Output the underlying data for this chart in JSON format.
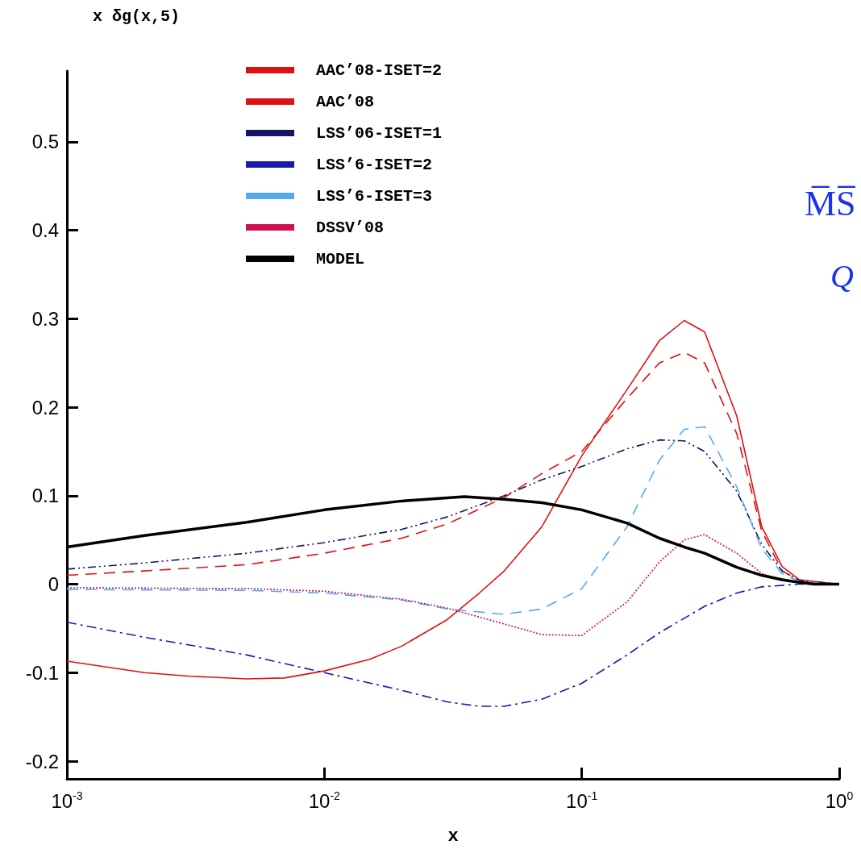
{
  "chart_data": {
    "type": "line",
    "ylabel": "x δg(x,5)",
    "xlabel": "x",
    "annotations": [
      "M̅S̅",
      "Q"
    ],
    "log": "x",
    "grid": false,
    "legend": "top left",
    "marker": "none",
    "xlim": [
      0.001,
      1
    ],
    "xticks": [
      {
        "value": 0.001,
        "label": "10$^{-3}$"
      },
      {
        "value": 0.01,
        "label": "10$^{-2}$"
      },
      {
        "value": 0.1,
        "label": "10$^{-1}$"
      },
      {
        "value": 1,
        "label": "10$^{0}$"
      }
    ],
    "ylim": [
      -0.22,
      0.58
    ],
    "yticks": [
      -0.2,
      -0.1,
      0,
      0.1,
      0.2,
      0.3,
      0.4,
      0.5
    ],
    "series": [
      {
        "name": "AAC’08-ISET=2",
        "color": "#dd1111",
        "line_style": "solid",
        "x": [
          0.001,
          0.002,
          0.003,
          0.005,
          0.007,
          0.01,
          0.015,
          0.02,
          0.03,
          0.04,
          0.05,
          0.07,
          0.1,
          0.15,
          0.2,
          0.25,
          0.3,
          0.4,
          0.5,
          0.6,
          0.7,
          1
        ],
        "values": [
          -0.087,
          -0.1,
          -0.104,
          -0.107,
          -0.106,
          -0.098,
          -0.085,
          -0.07,
          -0.04,
          -0.01,
          0.015,
          0.065,
          0.145,
          0.22,
          0.275,
          0.298,
          0.285,
          0.19,
          0.065,
          0.02,
          0.005,
          0
        ]
      },
      {
        "name": "AAC’08",
        "color": "#dd1111",
        "line_style": "dashed",
        "x": [
          0.001,
          0.002,
          0.005,
          0.01,
          0.02,
          0.03,
          0.05,
          0.07,
          0.1,
          0.15,
          0.2,
          0.25,
          0.3,
          0.4,
          0.5,
          0.6,
          0.7,
          0.8,
          1
        ],
        "values": [
          0.01,
          0.015,
          0.022,
          0.035,
          0.052,
          0.068,
          0.098,
          0.125,
          0.15,
          0.21,
          0.25,
          0.262,
          0.25,
          0.17,
          0.06,
          0.015,
          0.004,
          0,
          0
        ]
      },
      {
        "name": "LSS’06-ISET=1",
        "color": "#141464",
        "line_style": "dashdotdot",
        "x": [
          0.001,
          0.002,
          0.005,
          0.01,
          0.02,
          0.03,
          0.05,
          0.07,
          0.1,
          0.15,
          0.2,
          0.25,
          0.3,
          0.4,
          0.5,
          0.6,
          0.7,
          1
        ],
        "values": [
          0.017,
          0.024,
          0.035,
          0.047,
          0.062,
          0.076,
          0.1,
          0.118,
          0.133,
          0.153,
          0.163,
          0.162,
          0.15,
          0.105,
          0.045,
          0.015,
          0.004,
          0
        ]
      },
      {
        "name": "LSS’6-ISET=2",
        "color": "#1a1aaa",
        "line_style": "dashdot",
        "x": [
          0.001,
          0.002,
          0.005,
          0.01,
          0.02,
          0.03,
          0.04,
          0.05,
          0.07,
          0.1,
          0.15,
          0.2,
          0.3,
          0.4,
          0.5,
          0.7,
          1
        ],
        "values": [
          -0.043,
          -0.06,
          -0.08,
          -0.1,
          -0.12,
          -0.133,
          -0.138,
          -0.138,
          -0.13,
          -0.112,
          -0.08,
          -0.055,
          -0.025,
          -0.01,
          -0.003,
          0,
          0
        ]
      },
      {
        "name": "LSS’6-ISET=3",
        "color": "#55aaee",
        "line_style": "dashed",
        "x": [
          0.001,
          0.005,
          0.01,
          0.02,
          0.03,
          0.05,
          0.07,
          0.1,
          0.15,
          0.2,
          0.25,
          0.3,
          0.4,
          0.5,
          0.6,
          0.7,
          1
        ],
        "values": [
          -0.006,
          -0.007,
          -0.01,
          -0.018,
          -0.028,
          -0.034,
          -0.028,
          -0.005,
          0.065,
          0.14,
          0.175,
          0.178,
          0.11,
          0.04,
          0.012,
          0.003,
          0
        ]
      },
      {
        "name": "DSSV’08",
        "color": "#cc1155",
        "line_style": "dotted",
        "x": [
          0.001,
          0.005,
          0.01,
          0.02,
          0.03,
          0.05,
          0.07,
          0.1,
          0.15,
          0.2,
          0.25,
          0.3,
          0.4,
          0.5,
          0.6,
          0.8,
          1
        ],
        "values": [
          -0.004,
          -0.005,
          -0.008,
          -0.017,
          -0.027,
          -0.045,
          -0.057,
          -0.058,
          -0.02,
          0.025,
          0.05,
          0.056,
          0.035,
          0.012,
          0.004,
          0,
          0
        ]
      },
      {
        "name": "MODEL",
        "color": "#000000",
        "line_style": "solid",
        "x": [
          0.001,
          0.002,
          0.005,
          0.01,
          0.02,
          0.035,
          0.05,
          0.07,
          0.1,
          0.15,
          0.2,
          0.25,
          0.3,
          0.4,
          0.5,
          0.6,
          0.7,
          0.8,
          1
        ],
        "values": [
          0.042,
          0.055,
          0.07,
          0.084,
          0.094,
          0.099,
          0.096,
          0.092,
          0.084,
          0.069,
          0.052,
          0.042,
          0.035,
          0.019,
          0.01,
          0.005,
          0.002,
          0,
          0
        ]
      }
    ]
  }
}
